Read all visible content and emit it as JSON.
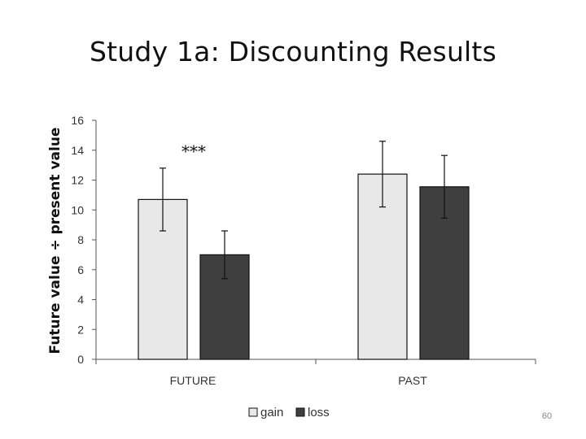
{
  "slide": {
    "title": "Study 1a: Discounting Results",
    "page_number": "60"
  },
  "chart_data": {
    "type": "bar",
    "title": "",
    "xlabel": "",
    "ylabel": "Future value ÷ present value",
    "ylim": [
      0,
      16
    ],
    "yticks": [
      0,
      2,
      4,
      6,
      8,
      10,
      12,
      14,
      16
    ],
    "grid": false,
    "legend": "bottom",
    "categories": [
      "FUTURE",
      "PAST"
    ],
    "series": [
      {
        "name": "gain",
        "color": "#e8e8e8",
        "values": [
          10.7,
          12.4
        ],
        "error": [
          2.1,
          2.2
        ]
      },
      {
        "name": "loss",
        "color": "#3f3f3f",
        "values": [
          7.0,
          11.55
        ],
        "error": [
          1.6,
          2.1
        ]
      }
    ],
    "annotations": [
      {
        "text": "***",
        "category": "FUTURE"
      }
    ]
  }
}
